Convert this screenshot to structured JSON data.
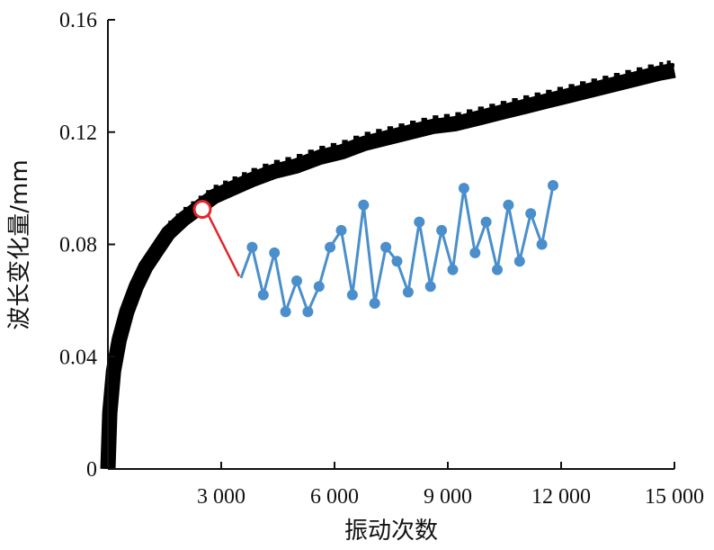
{
  "chart_data": {
    "type": "line",
    "xlabel": "振动次数",
    "ylabel": "波长变化量/mm",
    "xlim": [
      0,
      15000
    ],
    "ylim": [
      0,
      0.16
    ],
    "x_ticks": [
      3000,
      6000,
      9000,
      12000,
      15000
    ],
    "x_tick_labels": [
      "3 000",
      "6 000",
      "9 000",
      "12 000",
      "15 000"
    ],
    "y_ticks": [
      0,
      0.04,
      0.08,
      0.12,
      0.16
    ],
    "y_tick_labels": [
      "0",
      "0.04",
      "0.08",
      "0.12",
      "0.16"
    ],
    "grid": false,
    "series": [
      {
        "color": "#000000",
        "x": [
          0,
          50,
          150,
          300,
          500,
          750,
          1000,
          1300,
          1600,
          2000,
          2400,
          2800,
          3300,
          3800,
          4400,
          5000,
          5600,
          6200,
          6800,
          7400,
          8000,
          8600,
          9200,
          9800,
          10400,
          11000,
          11600,
          12200,
          12800,
          13400,
          14000,
          14600,
          15000
        ],
        "y": [
          0,
          0.02,
          0.035,
          0.046,
          0.056,
          0.065,
          0.072,
          0.078,
          0.084,
          0.089,
          0.093,
          0.097,
          0.1,
          0.103,
          0.106,
          0.108,
          0.111,
          0.113,
          0.116,
          0.118,
          0.12,
          0.122,
          0.123,
          0.125,
          0.127,
          0.129,
          0.131,
          0.133,
          0.135,
          0.137,
          0.139,
          0.141,
          0.142
        ]
      }
    ],
    "annotation": {
      "marker_x": 2500,
      "marker_y": 0.0925,
      "marker_color": "#e0262a",
      "detail_color": "#4a8fcb",
      "detail_series_y": [
        0.068,
        0.079,
        0.062,
        0.077,
        0.056,
        0.067,
        0.056,
        0.065,
        0.079,
        0.085,
        0.062,
        0.094,
        0.059,
        0.079,
        0.074,
        0.063,
        0.088,
        0.065,
        0.085,
        0.071,
        0.1,
        0.077,
        0.088,
        0.071,
        0.094,
        0.074,
        0.091,
        0.08,
        0.101
      ]
    }
  }
}
